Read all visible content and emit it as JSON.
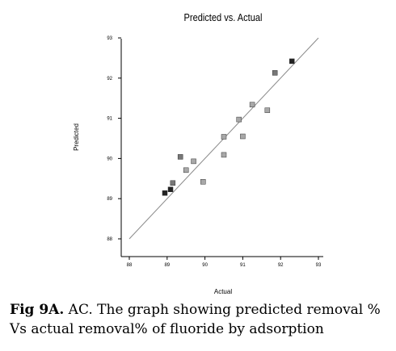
{
  "chart_data": {
    "type": "scatter",
    "title": "Predicted vs. Actual",
    "xlabel": "Actual",
    "ylabel": "Predicted",
    "xlim": [
      88,
      93
    ],
    "ylim": [
      88,
      93
    ],
    "xticks": [
      "88",
      "89",
      "90",
      "91",
      "92",
      "93"
    ],
    "yticks": [
      "88",
      "89",
      "90",
      "91",
      "92",
      "93"
    ],
    "grid": false,
    "reference_line": {
      "x": [
        88,
        93
      ],
      "y": [
        88,
        93
      ]
    },
    "points": [
      {
        "x": 88.94,
        "y": 89.14,
        "shade": "dark"
      },
      {
        "x": 89.09,
        "y": 89.23,
        "shade": "dark"
      },
      {
        "x": 89.15,
        "y": 89.39,
        "shade": "mid"
      },
      {
        "x": 89.35,
        "y": 90.04,
        "shade": "mid"
      },
      {
        "x": 89.5,
        "y": 89.71,
        "shade": "light"
      },
      {
        "x": 89.7,
        "y": 89.93,
        "shade": "light"
      },
      {
        "x": 89.95,
        "y": 89.42,
        "shade": "light"
      },
      {
        "x": 90.5,
        "y": 90.09,
        "shade": "light"
      },
      {
        "x": 90.5,
        "y": 90.54,
        "shade": "light"
      },
      {
        "x": 90.9,
        "y": 90.97,
        "shade": "light"
      },
      {
        "x": 91.0,
        "y": 90.55,
        "shade": "light"
      },
      {
        "x": 91.25,
        "y": 91.34,
        "shade": "light"
      },
      {
        "x": 91.65,
        "y": 91.2,
        "shade": "light"
      },
      {
        "x": 91.85,
        "y": 92.13,
        "shade": "mid"
      },
      {
        "x": 92.3,
        "y": 92.42,
        "shade": "dark"
      }
    ],
    "shade_colors": {
      "dark": "#222222",
      "mid": "#777777",
      "light": "#a8a8a8"
    }
  },
  "caption": {
    "label": "Fig 9A.",
    "text": " AC. The graph showing predicted removal % Vs actual removal% of fluoride by adsorption"
  }
}
